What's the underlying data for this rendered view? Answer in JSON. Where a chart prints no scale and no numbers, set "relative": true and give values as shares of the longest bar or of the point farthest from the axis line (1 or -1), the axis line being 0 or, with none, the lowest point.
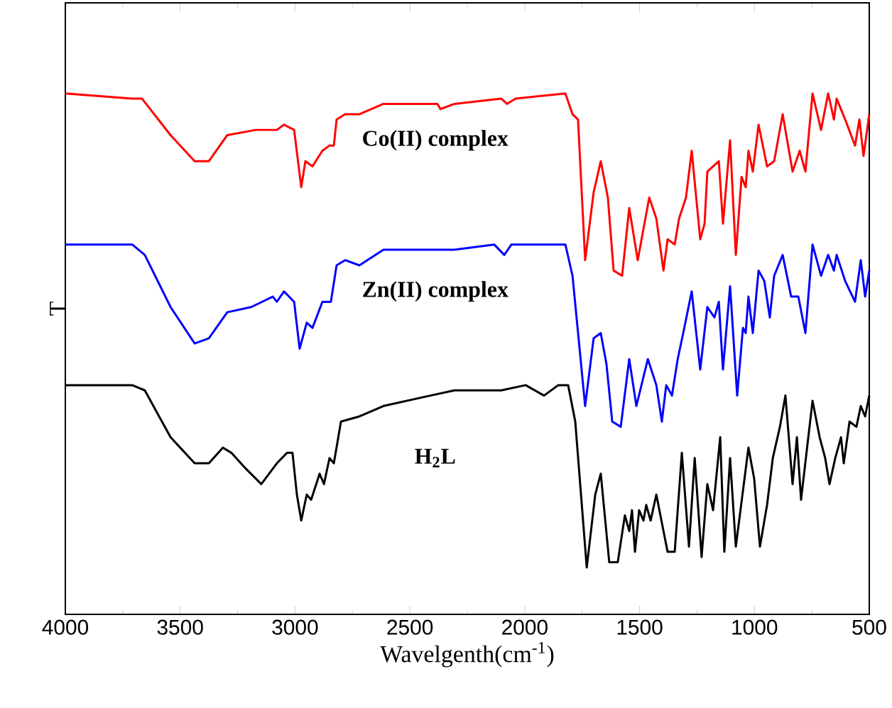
{
  "chart_data": {
    "type": "line",
    "relative": true,
    "xlabel": "Wavelgenth(cm$^{-1}$)",
    "ylabel": "T",
    "xlim": [
      4000,
      500
    ],
    "xticks": [
      4000,
      3500,
      3000,
      2500,
      2000,
      1500,
      1000,
      500
    ],
    "grid": false,
    "series": [
      {
        "name": "Co(II) complex",
        "color": "#ff0000",
        "x": [
          4000,
          3709,
          3666,
          3542,
          3437,
          3375,
          3295,
          3171,
          3097,
          3079,
          3048,
          3004,
          2973,
          2955,
          2924,
          2881,
          2850,
          2831,
          2819,
          2782,
          2720,
          2615,
          2380,
          2367,
          2306,
          2102,
          2077,
          2040,
          1823,
          1792,
          1768,
          1737,
          1700,
          1669,
          1638,
          1613,
          1576,
          1545,
          1508,
          1458,
          1427,
          1396,
          1378,
          1347,
          1328,
          1298,
          1273,
          1236,
          1217,
          1205,
          1155,
          1137,
          1106,
          1081,
          1056,
          1038,
          1026,
          1007,
          982,
          945,
          914,
          877,
          834,
          803,
          778,
          747,
          710,
          679,
          654,
          642,
          605,
          562,
          543,
          525,
          500
        ],
        "values": [
          1.0,
          0.99,
          0.99,
          0.92,
          0.87,
          0.87,
          0.92,
          0.93,
          0.93,
          0.93,
          0.94,
          0.93,
          0.82,
          0.87,
          0.86,
          0.89,
          0.9,
          0.9,
          0.95,
          0.96,
          0.96,
          0.98,
          0.98,
          0.97,
          0.98,
          0.99,
          0.98,
          0.99,
          1.0,
          0.96,
          0.95,
          0.68,
          0.81,
          0.87,
          0.8,
          0.66,
          0.65,
          0.78,
          0.68,
          0.8,
          0.76,
          0.66,
          0.72,
          0.71,
          0.76,
          0.8,
          0.89,
          0.72,
          0.75,
          0.85,
          0.87,
          0.75,
          0.91,
          0.69,
          0.84,
          0.82,
          0.89,
          0.85,
          0.94,
          0.86,
          0.87,
          0.96,
          0.85,
          0.89,
          0.85,
          1.0,
          0.93,
          1.0,
          0.95,
          0.99,
          0.95,
          0.9,
          0.95,
          0.88,
          0.96
        ]
      },
      {
        "name": "Zn(II) complex",
        "color": "#0000ff",
        "x": [
          4000,
          3746,
          3709,
          3654,
          3542,
          3437,
          3375,
          3295,
          3190,
          3097,
          3079,
          3048,
          3004,
          2980,
          2949,
          2924,
          2881,
          2844,
          2819,
          2782,
          2720,
          2615,
          2306,
          2133,
          2089,
          2058,
          1823,
          1792,
          1737,
          1700,
          1669,
          1644,
          1619,
          1582,
          1545,
          1514,
          1464,
          1427,
          1403,
          1384,
          1359,
          1334,
          1310,
          1273,
          1236,
          1205,
          1174,
          1155,
          1137,
          1106,
          1075,
          1050,
          1038,
          1026,
          1007,
          982,
          957,
          933,
          914,
          877,
          840,
          809,
          778,
          747,
          710,
          679,
          654,
          642,
          605,
          562,
          537,
          518,
          500
        ],
        "values": [
          0.71,
          0.71,
          0.71,
          0.69,
          0.59,
          0.52,
          0.53,
          0.58,
          0.59,
          0.61,
          0.6,
          0.62,
          0.6,
          0.51,
          0.56,
          0.55,
          0.6,
          0.6,
          0.67,
          0.68,
          0.67,
          0.7,
          0.7,
          0.71,
          0.69,
          0.71,
          0.71,
          0.65,
          0.4,
          0.53,
          0.54,
          0.48,
          0.37,
          0.36,
          0.49,
          0.4,
          0.49,
          0.44,
          0.37,
          0.44,
          0.42,
          0.49,
          0.54,
          0.62,
          0.47,
          0.59,
          0.57,
          0.6,
          0.47,
          0.63,
          0.42,
          0.55,
          0.54,
          0.61,
          0.54,
          0.66,
          0.64,
          0.57,
          0.65,
          0.69,
          0.61,
          0.61,
          0.54,
          0.71,
          0.65,
          0.69,
          0.66,
          0.69,
          0.64,
          0.6,
          0.68,
          0.61,
          0.66
        ]
      },
      {
        "name": "H$_{2}$L",
        "color": "#000000",
        "x": [
          4000,
          3771,
          3746,
          3709,
          3654,
          3542,
          3437,
          3375,
          3314,
          3277,
          3215,
          3147,
          3079,
          3035,
          3011,
          2992,
          2973,
          2949,
          2930,
          2893,
          2874,
          2850,
          2831,
          2800,
          2720,
          2615,
          2411,
          2306,
          2102,
          1996,
          1916,
          1854,
          1811,
          1780,
          1730,
          1693,
          1669,
          1632,
          1595,
          1564,
          1545,
          1533,
          1520,
          1502,
          1483,
          1471,
          1452,
          1427,
          1396,
          1378,
          1347,
          1316,
          1285,
          1260,
          1230,
          1205,
          1180,
          1149,
          1131,
          1106,
          1081,
          1026,
          1001,
          976,
          945,
          920,
          889,
          865,
          834,
          815,
          797,
          747,
          716,
          692,
          673,
          648,
          623,
          611,
          586,
          556,
          537,
          518,
          500
        ],
        "values": [
          0.44,
          0.44,
          0.44,
          0.44,
          0.43,
          0.34,
          0.29,
          0.29,
          0.32,
          0.31,
          0.28,
          0.25,
          0.29,
          0.31,
          0.31,
          0.23,
          0.18,
          0.23,
          0.22,
          0.27,
          0.25,
          0.3,
          0.29,
          0.37,
          0.38,
          0.4,
          0.42,
          0.43,
          0.43,
          0.44,
          0.42,
          0.44,
          0.44,
          0.37,
          0.09,
          0.23,
          0.27,
          0.1,
          0.1,
          0.19,
          0.16,
          0.2,
          0.12,
          0.2,
          0.18,
          0.21,
          0.18,
          0.23,
          0.16,
          0.12,
          0.12,
          0.31,
          0.13,
          0.3,
          0.11,
          0.25,
          0.2,
          0.34,
          0.12,
          0.3,
          0.13,
          0.32,
          0.26,
          0.13,
          0.21,
          0.3,
          0.36,
          0.42,
          0.25,
          0.34,
          0.22,
          0.41,
          0.34,
          0.3,
          0.25,
          0.3,
          0.34,
          0.29,
          0.37,
          0.36,
          0.4,
          0.38,
          0.42
        ]
      }
    ]
  }
}
